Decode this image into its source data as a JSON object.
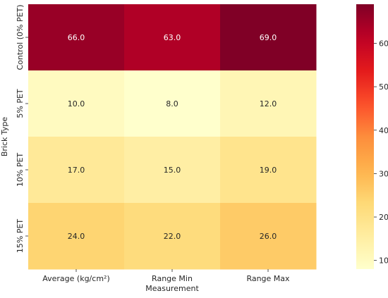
{
  "chart_data": {
    "type": "heatmap",
    "title": "",
    "xlabel": "Measurement",
    "ylabel": "Brick Type",
    "x_categories": [
      "Average (kg/cm²)",
      "Range Min",
      "Range Max"
    ],
    "y_categories": [
      "Control (0% PET)",
      "5% PET",
      "10% PET",
      "15% PET"
    ],
    "values": [
      [
        66.0,
        63.0,
        69.0
      ],
      [
        10.0,
        8.0,
        12.0
      ],
      [
        17.0,
        15.0,
        19.0
      ],
      [
        24.0,
        22.0,
        26.0
      ]
    ],
    "cell_labels": [
      [
        "66.0",
        "63.0",
        "69.0"
      ],
      [
        "10.0",
        "8.0",
        "12.0"
      ],
      [
        "17.0",
        "15.0",
        "19.0"
      ],
      [
        "24.0",
        "22.0",
        "26.0"
      ]
    ],
    "colormap": "YlOrRd",
    "value_range": [
      8,
      69
    ],
    "colorbar": {
      "ticks": [
        10,
        20,
        30,
        40,
        50,
        60
      ],
      "tick_labels": [
        "10",
        "20",
        "30",
        "40",
        "50",
        "60"
      ]
    }
  }
}
